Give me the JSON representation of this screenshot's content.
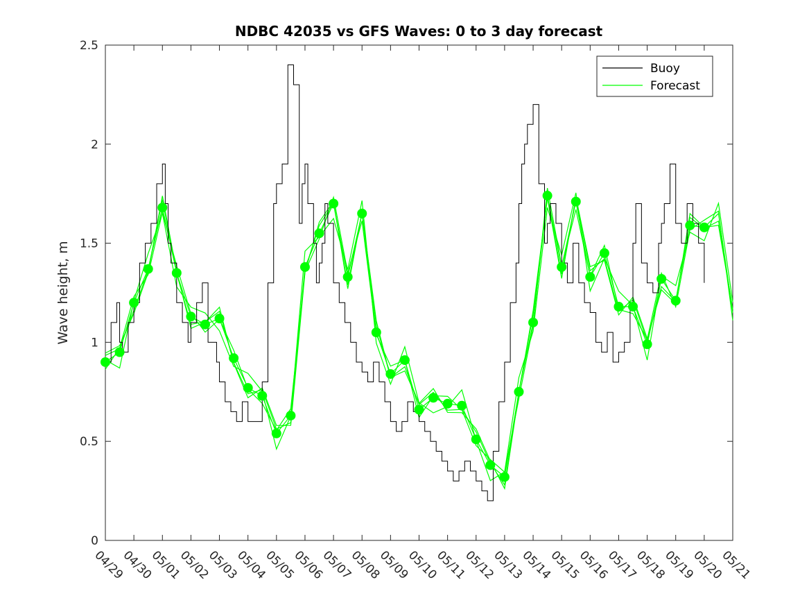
{
  "chart_data": {
    "type": "line",
    "title": "NDBC 42035 vs GFS Waves: 0 to 3 day forecast",
    "xlabel": "",
    "ylabel": "Wave height, m",
    "xlim": [
      0,
      22
    ],
    "ylim": [
      0,
      2.5
    ],
    "yticks": [
      0,
      0.5,
      1,
      1.5,
      2,
      2.5
    ],
    "ytick_labels": [
      "0",
      "0.5",
      "1",
      "1.5",
      "2",
      "2.5"
    ],
    "xtick_labels": [
      "04/29",
      "04/30",
      "05/01",
      "05/02",
      "05/03",
      "05/04",
      "05/05",
      "05/06",
      "05/07",
      "05/08",
      "05/09",
      "05/10",
      "05/11",
      "05/12",
      "05/13",
      "05/14",
      "05/15",
      "05/16",
      "05/17",
      "05/18",
      "05/19",
      "05/20",
      "05/21"
    ],
    "legend_placement": "top-right",
    "grid": false,
    "colors": {
      "buoy": "#000000",
      "forecast": "#00ff00"
    },
    "series": [
      {
        "name": "Buoy",
        "x_days_since_0429": [
          0,
          0.2,
          0.4,
          0.5,
          0.6,
          0.8,
          1.0,
          1.2,
          1.4,
          1.6,
          1.8,
          2.0,
          2.1,
          2.2,
          2.3,
          2.5,
          2.7,
          2.9,
          3.0,
          3.2,
          3.4,
          3.6,
          3.9,
          4.0,
          4.2,
          4.4,
          4.6,
          4.8,
          5.0,
          5.1,
          5.2,
          5.4,
          5.5,
          5.7,
          5.9,
          6.0,
          6.2,
          6.4,
          6.6,
          6.8,
          6.9,
          7.0,
          7.1,
          7.3,
          7.4,
          7.5,
          7.6,
          7.7,
          7.8,
          8.0,
          8.2,
          8.4,
          8.6,
          8.8,
          9.0,
          9.2,
          9.4,
          9.6,
          9.8,
          10.0,
          10.2,
          10.4,
          10.6,
          10.8,
          11.0,
          11.2,
          11.4,
          11.6,
          11.8,
          12.0,
          12.2,
          12.4,
          12.6,
          12.8,
          13.0,
          13.2,
          13.4,
          13.6,
          13.8,
          14.0,
          14.2,
          14.4,
          14.5,
          14.6,
          14.7,
          14.8,
          15.0,
          15.2,
          15.4,
          15.5,
          15.6,
          15.8,
          16.0,
          16.2,
          16.4,
          16.6,
          16.8,
          17.0,
          17.2,
          17.4,
          17.6,
          17.8,
          18.0,
          18.2,
          18.4,
          18.5,
          18.6,
          18.8,
          19.0,
          19.2,
          19.4,
          19.5,
          19.6,
          19.8,
          20.0,
          20.2,
          20.4,
          20.6,
          20.8,
          21.0
        ],
        "y": [
          0.9,
          1.1,
          1.2,
          1.0,
          0.95,
          1.1,
          1.2,
          1.4,
          1.5,
          1.6,
          1.8,
          1.9,
          1.7,
          1.5,
          1.4,
          1.2,
          1.1,
          1.0,
          1.1,
          1.2,
          1.3,
          1.0,
          0.9,
          0.8,
          0.7,
          0.65,
          0.6,
          0.7,
          0.6,
          0.6,
          0.6,
          0.6,
          0.8,
          1.3,
          1.7,
          1.8,
          1.9,
          2.4,
          2.3,
          1.6,
          1.8,
          1.9,
          1.7,
          1.5,
          1.3,
          1.4,
          1.5,
          1.7,
          1.6,
          1.3,
          1.2,
          1.1,
          1.0,
          0.9,
          0.85,
          0.8,
          0.9,
          0.8,
          0.7,
          0.6,
          0.55,
          0.6,
          0.7,
          0.65,
          0.6,
          0.55,
          0.5,
          0.45,
          0.4,
          0.35,
          0.3,
          0.35,
          0.4,
          0.35,
          0.3,
          0.25,
          0.2,
          0.45,
          0.7,
          0.9,
          1.2,
          1.4,
          1.7,
          1.9,
          2.0,
          2.1,
          2.2,
          1.8,
          1.5,
          1.6,
          1.7,
          1.6,
          1.4,
          1.3,
          1.5,
          1.3,
          1.2,
          1.15,
          1.0,
          0.95,
          1.05,
          0.9,
          0.95,
          1.0,
          1.2,
          1.5,
          1.7,
          1.4,
          1.3,
          1.25,
          1.5,
          1.6,
          1.7,
          1.9,
          1.6,
          1.5,
          1.7,
          1.6,
          1.5,
          1.3
        ]
      },
      {
        "name": "Forecast",
        "x_days_since_0429": [
          0,
          0.5,
          1.0,
          1.5,
          2.0,
          2.5,
          3.0,
          3.5,
          4.0,
          4.5,
          5.0,
          5.5,
          6.0,
          6.5,
          7.0,
          7.5,
          8.0,
          8.5,
          9.0,
          9.5,
          10.0,
          10.5,
          11.0,
          11.5,
          12.0,
          12.5,
          13.0,
          13.5,
          14.0,
          14.5,
          15.0,
          15.5,
          16.0,
          16.5,
          17.0,
          17.5,
          18.0,
          18.5,
          19.0,
          19.5,
          20.0,
          20.5,
          21.0,
          21.5,
          22.0
        ],
        "y": [
          0.9,
          0.95,
          1.2,
          1.37,
          1.68,
          1.35,
          1.13,
          1.09,
          1.12,
          0.92,
          0.77,
          0.73,
          0.54,
          0.63,
          1.38,
          1.55,
          1.7,
          1.33,
          1.65,
          1.05,
          0.84,
          0.91,
          0.66,
          0.72,
          0.69,
          0.68,
          0.51,
          0.38,
          0.32,
          0.75,
          1.1,
          1.74,
          1.38,
          1.71,
          1.33,
          1.45,
          1.18,
          1.18,
          0.99,
          1.32,
          1.21,
          1.59,
          1.58,
          1.65,
          1.15
        ]
      }
    ],
    "markers": {
      "x_days_since_0429": [
        0,
        0.5,
        1.0,
        1.5,
        2.0,
        2.5,
        3.0,
        3.5,
        4.0,
        4.5,
        5.0,
        5.5,
        6.0,
        6.5,
        7.0,
        7.5,
        8.0,
        8.5,
        9.0,
        9.5,
        10.0,
        10.5,
        11.0,
        11.5,
        12.0,
        12.5,
        13.0,
        13.5,
        14.0,
        14.5,
        15.0,
        15.5,
        16.0,
        16.5,
        17.0,
        17.5,
        18.0,
        18.5,
        19.0,
        19.5,
        20.0,
        20.5,
        21.0
      ],
      "y": [
        0.9,
        0.95,
        1.2,
        1.37,
        1.68,
        1.35,
        1.13,
        1.09,
        1.12,
        0.92,
        0.77,
        0.73,
        0.54,
        0.63,
        1.38,
        1.55,
        1.7,
        1.33,
        1.65,
        1.05,
        0.84,
        0.91,
        0.66,
        0.72,
        0.69,
        0.68,
        0.51,
        0.38,
        0.32,
        0.75,
        1.1,
        1.74,
        1.38,
        1.71,
        1.33,
        1.45,
        1.18,
        1.18,
        0.99,
        1.32,
        1.21,
        1.59,
        1.58
      ]
    },
    "legend": [
      {
        "label": "Buoy",
        "color": "#000000"
      },
      {
        "label": "Forecast",
        "color": "#00ff00"
      }
    ]
  }
}
